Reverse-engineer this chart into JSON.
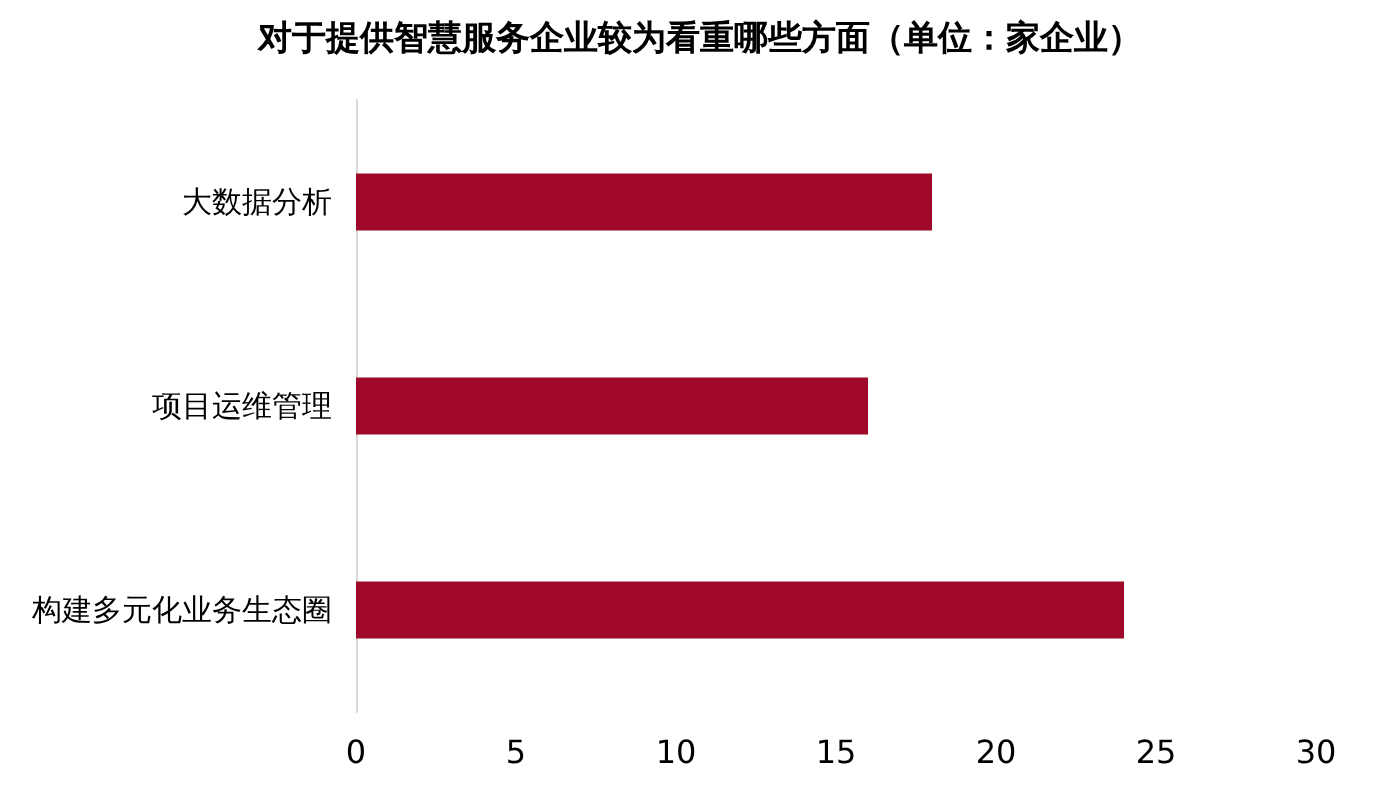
{
  "chart_data": {
    "type": "bar",
    "orientation": "horizontal",
    "title": "对于提供智慧服务企业较为看重哪些方面（单位：家企业）",
    "categories": [
      "大数据分析",
      "项目运维管理",
      "构建多元化业务生态圈"
    ],
    "values": [
      18,
      16,
      24
    ],
    "color": "#a0092a",
    "xlim": [
      0,
      30
    ],
    "xticks": [
      0,
      5,
      10,
      15,
      20,
      25,
      30
    ],
    "grid": false
  }
}
